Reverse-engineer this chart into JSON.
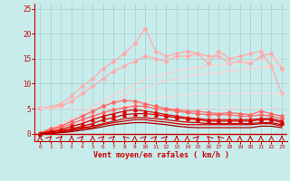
{
  "background_color": "#c8ecec",
  "grid_color": "#a0d0d0",
  "xlabel": "Vent moyen/en rafales ( km/h )",
  "xlim": [
    0,
    23
  ],
  "ylim": [
    0,
    26
  ],
  "yticks": [
    0,
    5,
    10,
    15,
    20,
    25
  ],
  "xticks": [
    0,
    1,
    2,
    3,
    4,
    5,
    6,
    7,
    8,
    9,
    10,
    11,
    12,
    13,
    14,
    15,
    16,
    17,
    18,
    19,
    20,
    21,
    22,
    23
  ],
  "tick_color": "#cc0000",
  "axis_color": "#cc0000",
  "xlabel_color": "#cc0000",
  "lines": [
    {
      "label": "spike_pink_marker",
      "y": [
        5.2,
        5.3,
        6.0,
        7.5,
        9.5,
        11.0,
        13.0,
        14.5,
        16.0,
        18.0,
        21.0,
        16.5,
        15.5,
        16.0,
        16.5,
        16.0,
        14.0,
        16.5,
        15.0,
        15.5,
        16.0,
        16.5,
        13.5,
        8.0
      ],
      "color": "#ffaaaa",
      "lw": 0.9,
      "marker": "D",
      "ms": 2.0
    },
    {
      "label": "mid_pink_marker",
      "y": [
        5.0,
        5.2,
        5.5,
        6.5,
        8.0,
        9.5,
        11.0,
        12.5,
        13.5,
        14.5,
        15.5,
        15.0,
        14.5,
        15.5,
        15.5,
        16.0,
        15.5,
        15.5,
        14.0,
        14.5,
        14.0,
        15.5,
        16.0,
        13.0
      ],
      "color": "#ffaaaa",
      "lw": 0.9,
      "marker": "D",
      "ms": 2.0
    },
    {
      "label": "upper_smooth1",
      "y": [
        0.0,
        1.0,
        2.0,
        3.0,
        4.2,
        5.5,
        6.5,
        7.8,
        8.8,
        9.8,
        10.8,
        11.5,
        12.0,
        12.5,
        13.0,
        13.2,
        13.5,
        13.8,
        14.0,
        14.2,
        14.5,
        14.7,
        14.8,
        15.0
      ],
      "color": "#ffcccc",
      "lw": 0.9,
      "marker": null,
      "ms": 0
    },
    {
      "label": "upper_smooth2",
      "y": [
        0.0,
        0.8,
        1.5,
        2.5,
        3.5,
        4.5,
        5.5,
        6.5,
        7.5,
        8.5,
        9.2,
        10.0,
        10.5,
        11.0,
        11.5,
        11.8,
        12.0,
        12.2,
        12.5,
        12.8,
        13.0,
        13.2,
        13.5,
        13.8
      ],
      "color": "#ffcccc",
      "lw": 0.9,
      "marker": null,
      "ms": 0
    },
    {
      "label": "lower_smooth1",
      "y": [
        0.0,
        0.5,
        1.0,
        1.8,
        2.5,
        3.2,
        4.0,
        4.8,
        5.5,
        6.0,
        6.5,
        7.0,
        7.3,
        7.5,
        7.8,
        8.0,
        8.0,
        8.0,
        8.0,
        8.0,
        8.0,
        8.0,
        8.0,
        8.0
      ],
      "color": "#ffdddd",
      "lw": 0.8,
      "marker": null,
      "ms": 0
    },
    {
      "label": "lower_smooth2",
      "y": [
        5.2,
        5.2,
        5.2,
        5.2,
        5.2,
        5.2,
        5.2,
        5.2,
        5.2,
        5.2,
        5.2,
        5.2,
        5.2,
        5.2,
        5.2,
        5.2,
        5.2,
        5.2,
        5.2,
        5.2,
        5.2,
        5.2,
        5.2,
        5.2
      ],
      "color": "#ffdddd",
      "lw": 0.8,
      "marker": null,
      "ms": 0
    },
    {
      "label": "med_red_marker1",
      "y": [
        0.2,
        1.0,
        1.5,
        2.5,
        3.5,
        4.5,
        5.5,
        6.2,
        6.7,
        6.5,
        6.0,
        5.5,
        5.0,
        4.8,
        4.5,
        4.5,
        4.2,
        4.0,
        4.2,
        4.0,
        3.8,
        4.5,
        4.0,
        3.5
      ],
      "color": "#ff6666",
      "lw": 0.9,
      "marker": "D",
      "ms": 2.0
    },
    {
      "label": "med_red_marker2",
      "y": [
        0.1,
        0.8,
        1.2,
        2.0,
        2.8,
        3.5,
        4.2,
        4.8,
        5.2,
        5.5,
        5.5,
        5.0,
        4.8,
        4.5,
        4.2,
        4.0,
        3.8,
        3.8,
        3.8,
        3.5,
        3.5,
        3.8,
        3.5,
        3.0
      ],
      "color": "#ff6666",
      "lw": 0.9,
      "marker": "D",
      "ms": 2.0
    },
    {
      "label": "red_tri1",
      "y": [
        0.0,
        0.5,
        0.8,
        1.5,
        2.0,
        2.8,
        3.5,
        4.0,
        4.5,
        4.8,
        4.5,
        4.2,
        3.8,
        3.5,
        3.2,
        3.0,
        2.8,
        2.8,
        2.8,
        2.8,
        2.8,
        3.0,
        3.0,
        2.5
      ],
      "color": "#dd0000",
      "lw": 0.9,
      "marker": "^",
      "ms": 2.5
    },
    {
      "label": "red_tri2",
      "y": [
        0.0,
        0.3,
        0.6,
        1.0,
        1.5,
        2.0,
        2.8,
        3.2,
        3.8,
        4.0,
        4.0,
        3.8,
        3.5,
        3.2,
        3.0,
        2.8,
        2.5,
        2.5,
        2.5,
        2.5,
        2.5,
        2.8,
        2.8,
        2.2
      ],
      "color": "#dd0000",
      "lw": 0.9,
      "marker": "^",
      "ms": 2.5
    },
    {
      "label": "dark_red1",
      "y": [
        0.0,
        0.2,
        0.4,
        0.8,
        1.2,
        1.5,
        2.0,
        2.5,
        3.0,
        3.2,
        3.2,
        3.0,
        2.8,
        2.5,
        2.3,
        2.2,
        2.0,
        2.0,
        2.0,
        2.0,
        2.0,
        2.2,
        2.2,
        1.8
      ],
      "color": "#cc0000",
      "lw": 0.9,
      "marker": null,
      "ms": 0
    },
    {
      "label": "dark_red2",
      "y": [
        0.0,
        0.1,
        0.3,
        0.6,
        1.0,
        1.2,
        1.8,
        2.2,
        2.5,
        2.8,
        2.8,
        2.5,
        2.3,
        2.0,
        1.8,
        1.8,
        1.8,
        1.8,
        1.8,
        1.8,
        1.8,
        2.0,
        2.0,
        1.5
      ],
      "color": "#cc0000",
      "lw": 0.9,
      "marker": null,
      "ms": 0
    },
    {
      "label": "darkest_red",
      "y": [
        0.0,
        0.0,
        0.2,
        0.4,
        0.7,
        1.0,
        1.4,
        1.8,
        2.0,
        2.2,
        2.2,
        2.0,
        1.8,
        1.5,
        1.3,
        1.2,
        1.2,
        1.2,
        1.2,
        1.2,
        1.2,
        1.5,
        1.5,
        1.2
      ],
      "color": "#aa0000",
      "lw": 0.9,
      "marker": null,
      "ms": 0
    }
  ],
  "wind_arrows": [
    90,
    45,
    45,
    90,
    45,
    90,
    45,
    45,
    135,
    90,
    45,
    45,
    45,
    90,
    90,
    45,
    135,
    135,
    90,
    90,
    90,
    90,
    90,
    90
  ]
}
